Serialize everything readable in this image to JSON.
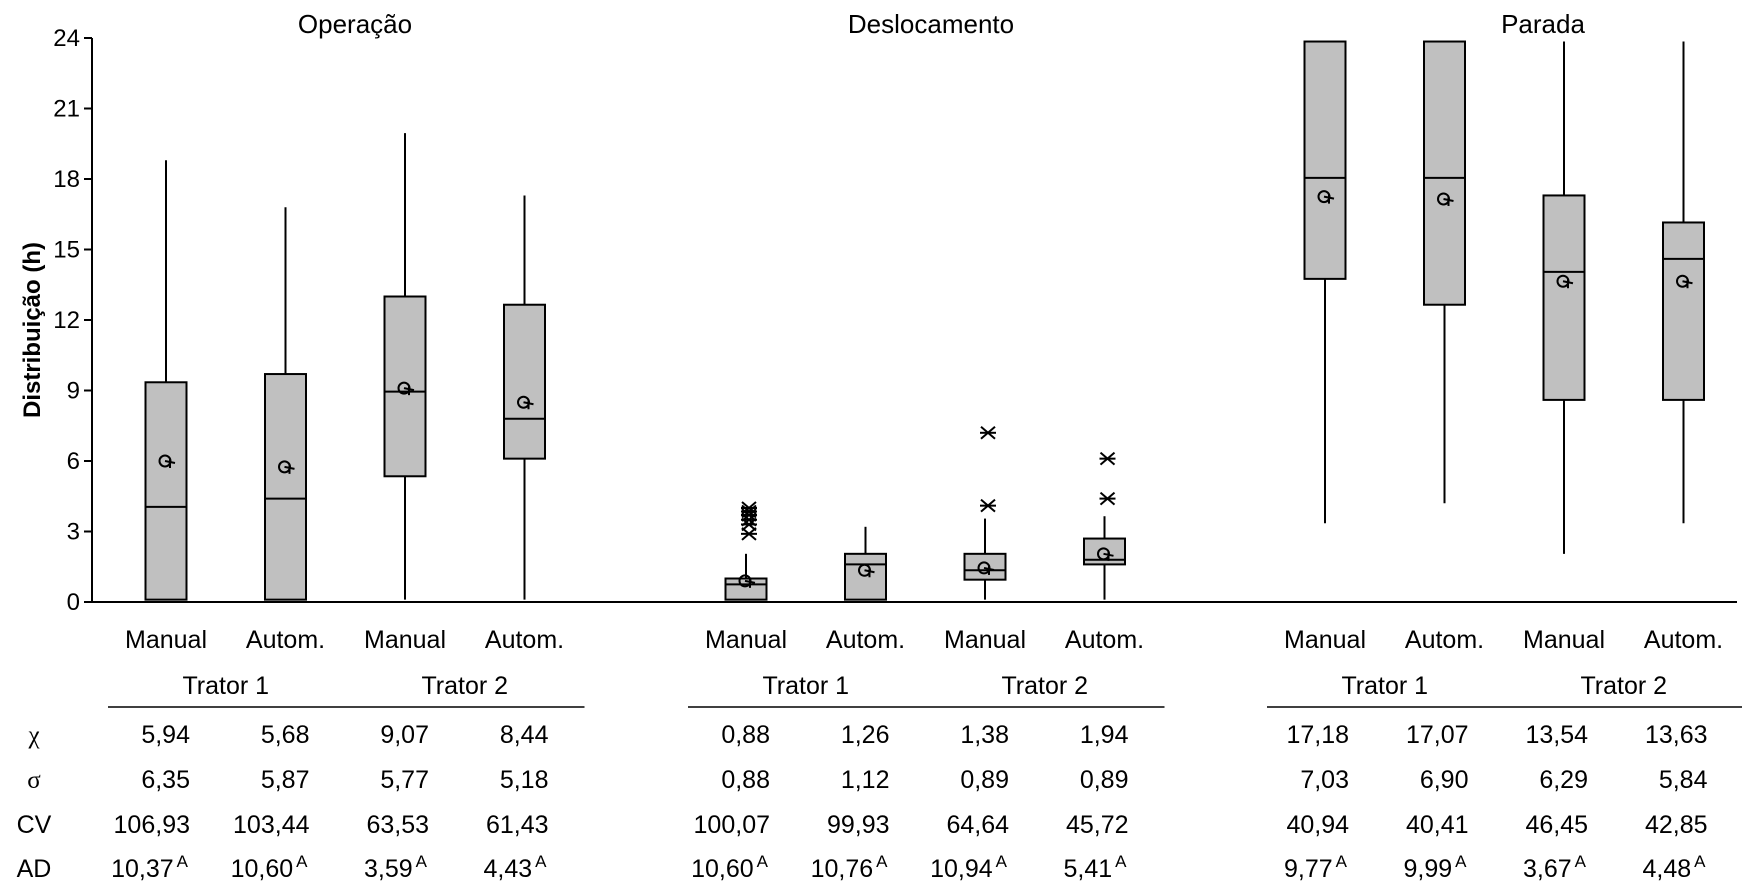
{
  "chart_data": {
    "type": "boxplot",
    "ylabel": "Distribuição (h)",
    "ylim": [
      0,
      24
    ],
    "yticks": [
      0,
      3,
      6,
      9,
      12,
      15,
      18,
      21,
      24
    ],
    "ytick_labels": [
      "0",
      "3",
      "6",
      "9",
      "12",
      "15",
      "18",
      "21",
      "24"
    ],
    "grid": false,
    "category_labels": [
      "Manual",
      "Autom.",
      "Manual",
      "Autom."
    ],
    "group_labels": [
      "Trator 1",
      "Trator 2"
    ],
    "stat_labels": [
      "χ",
      "σ",
      "CV",
      "AD"
    ],
    "panels": [
      {
        "title": "Operação",
        "boxes": [
          {
            "whisker_low": 0.1,
            "q1": 0.1,
            "median": 4.05,
            "q3": 9.35,
            "whisker_high": 18.8,
            "mean": 6.0,
            "outliers": []
          },
          {
            "whisker_low": 0.1,
            "q1": 0.1,
            "median": 4.4,
            "q3": 9.7,
            "whisker_high": 16.8,
            "mean": 5.75,
            "outliers": []
          },
          {
            "whisker_low": 0.1,
            "q1": 5.35,
            "median": 8.95,
            "q3": 13.0,
            "whisker_high": 19.95,
            "mean": 9.1,
            "outliers": []
          },
          {
            "whisker_low": 0.1,
            "q1": 6.1,
            "median": 7.8,
            "q3": 12.65,
            "whisker_high": 17.3,
            "mean": 8.5,
            "outliers": []
          }
        ],
        "stats": {
          "mean": [
            "5,94",
            "5,68",
            "9,07",
            "8,44"
          ],
          "sd": [
            "6,35",
            "5,87",
            "5,77",
            "5,18"
          ],
          "cv": [
            "106,93",
            "103,44",
            "63,53",
            "61,43"
          ],
          "ad": [
            "10,37",
            "10,60",
            "3,59",
            "4,43"
          ],
          "ad_sup": [
            "A",
            "A",
            "A",
            "A"
          ]
        }
      },
      {
        "title": "Deslocamento",
        "boxes": [
          {
            "whisker_low": 0.1,
            "q1": 0.1,
            "median": 0.75,
            "q3": 1.0,
            "whisker_high": 2.05,
            "mean": 0.9,
            "outliers": [
              2.9,
              3.3,
              3.5,
              3.7,
              3.85,
              4.0
            ]
          },
          {
            "whisker_low": 0.1,
            "q1": 0.1,
            "median": 1.6,
            "q3": 2.05,
            "whisker_high": 3.2,
            "mean": 1.35,
            "outliers": []
          },
          {
            "whisker_low": 0.1,
            "q1": 0.95,
            "median": 1.35,
            "q3": 2.05,
            "whisker_high": 3.55,
            "mean": 1.45,
            "outliers": [
              4.1,
              7.2
            ]
          },
          {
            "whisker_low": 0.1,
            "q1": 1.6,
            "median": 1.8,
            "q3": 2.7,
            "whisker_high": 3.65,
            "mean": 2.05,
            "outliers": [
              4.4,
              6.1
            ]
          }
        ],
        "stats": {
          "mean": [
            "0,88",
            "1,26",
            "1,38",
            "1,94"
          ],
          "sd": [
            "0,88",
            "1,12",
            "0,89",
            "0,89"
          ],
          "cv": [
            "100,07",
            "99,93",
            "64,64",
            "45,72"
          ],
          "ad": [
            "10,60",
            "10,76",
            "10,94",
            "5,41"
          ],
          "ad_sup": [
            "A",
            "A",
            "A",
            "A"
          ]
        }
      },
      {
        "title": "Parada",
        "boxes": [
          {
            "whisker_low": 3.35,
            "q1": 13.75,
            "median": 18.05,
            "q3": 23.85,
            "whisker_high": 23.85,
            "mean": 17.25,
            "outliers": []
          },
          {
            "whisker_low": 4.2,
            "q1": 12.65,
            "median": 18.05,
            "q3": 23.85,
            "whisker_high": 23.85,
            "mean": 17.15,
            "outliers": []
          },
          {
            "whisker_low": 2.05,
            "q1": 8.6,
            "median": 14.05,
            "q3": 17.3,
            "whisker_high": 23.85,
            "mean": 13.65,
            "outliers": []
          },
          {
            "whisker_low": 3.35,
            "q1": 8.6,
            "median": 14.6,
            "q3": 16.15,
            "whisker_high": 23.85,
            "mean": 13.65,
            "outliers": []
          }
        ],
        "stats": {
          "mean": [
            "17,18",
            "17,07",
            "13,54",
            "13,63"
          ],
          "sd": [
            "7,03",
            "6,90",
            "6,29",
            "5,84"
          ],
          "cv": [
            "40,94",
            "40,41",
            "46,45",
            "42,85"
          ],
          "ad": [
            "9,77",
            "9,99",
            "3,67",
            "4,48"
          ],
          "ad_sup": [
            "A",
            "A",
            "A",
            "A"
          ]
        }
      }
    ]
  }
}
